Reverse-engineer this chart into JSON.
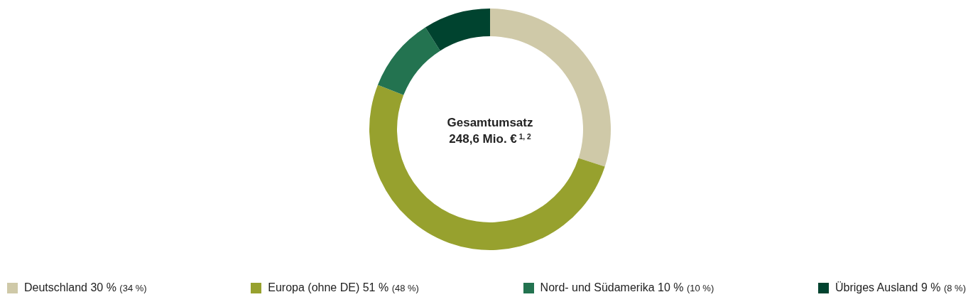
{
  "chart_data": {
    "type": "donut",
    "title": "Gesamtumsatz",
    "subtitle": "248,6 Mio. €$^{1, 2}$",
    "categories": [
      "Deutschland",
      "Europa (ohne DE)",
      "Nord- und Südamerika",
      "Übriges Ausland"
    ],
    "values": [
      30,
      51,
      10,
      9
    ],
    "colors": [
      "#cfc9a8",
      "#97a12e",
      "#237350",
      "#00432f"
    ],
    "value_labels": [
      "30 %",
      "51 %",
      "10 %",
      "9 %"
    ],
    "annotations": [
      "(34 %)",
      "(48 %)",
      "(10 %)",
      "(8 %)"
    ],
    "legend": "bottom"
  }
}
